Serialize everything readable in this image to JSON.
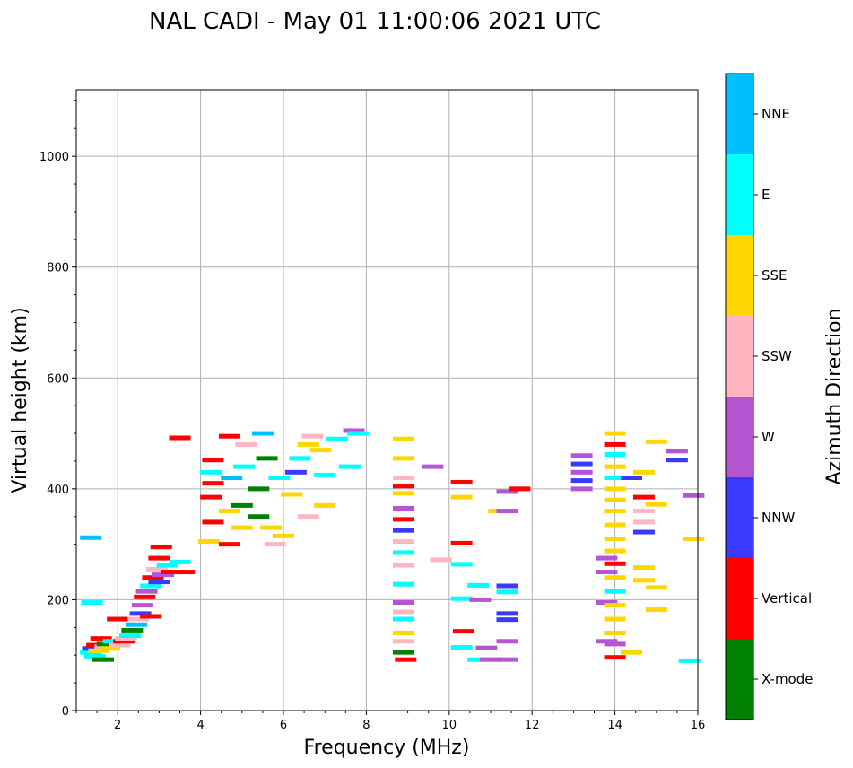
{
  "chart_data": {
    "type": "scatter",
    "title": "NAL CADI - May 01 11:00:06 2021 UTC",
    "xlabel": "Frequency (MHz)",
    "ylabel": "Virtual height (km)",
    "xlim": [
      1,
      16
    ],
    "ylim": [
      0,
      1120
    ],
    "xticks": [
      2,
      4,
      6,
      8,
      10,
      12,
      14,
      16
    ],
    "yticks": [
      0,
      200,
      400,
      600,
      800,
      1000
    ],
    "grid": true,
    "colorbar": {
      "label": "Azimuth Direction",
      "categories": [
        "X-mode",
        "Vertical",
        "NNW",
        "W",
        "SSW",
        "SSE",
        "E",
        "NNE"
      ],
      "colors": [
        "#008000",
        "#ff0000",
        "#3a3aff",
        "#b455d4",
        "#ffb6c1",
        "#ffd700",
        "#00ffff",
        "#00bfff"
      ]
    },
    "echoes": [
      {
        "f": 1.35,
        "h": 105,
        "c": "E"
      },
      {
        "f": 1.4,
        "h": 112,
        "c": "NNW"
      },
      {
        "f": 1.45,
        "h": 98,
        "c": "E"
      },
      {
        "f": 1.5,
        "h": 118,
        "c": "Vertical"
      },
      {
        "f": 1.55,
        "h": 108,
        "c": "SSE"
      },
      {
        "f": 1.6,
        "h": 130,
        "c": "Vertical"
      },
      {
        "f": 1.65,
        "h": 92,
        "c": "X-mode"
      },
      {
        "f": 1.7,
        "h": 115,
        "c": "SSW"
      },
      {
        "f": 1.75,
        "h": 120,
        "c": "X-mode"
      },
      {
        "f": 1.8,
        "h": 112,
        "c": "SSE"
      },
      {
        "f": 1.9,
        "h": 125,
        "c": "E"
      },
      {
        "f": 2.0,
        "h": 165,
        "c": "Vertical"
      },
      {
        "f": 2.05,
        "h": 118,
        "c": "SSW"
      },
      {
        "f": 2.15,
        "h": 125,
        "c": "Vertical"
      },
      {
        "f": 2.2,
        "h": 130,
        "c": "SSW"
      },
      {
        "f": 2.3,
        "h": 135,
        "c": "E"
      },
      {
        "f": 2.35,
        "h": 145,
        "c": "X-mode"
      },
      {
        "f": 2.45,
        "h": 155,
        "c": "NNE"
      },
      {
        "f": 2.5,
        "h": 165,
        "c": "SSW"
      },
      {
        "f": 2.55,
        "h": 175,
        "c": "NNW"
      },
      {
        "f": 2.6,
        "h": 190,
        "c": "W"
      },
      {
        "f": 2.65,
        "h": 205,
        "c": "Vertical"
      },
      {
        "f": 2.7,
        "h": 215,
        "c": "W"
      },
      {
        "f": 2.8,
        "h": 170,
        "c": "Vertical"
      },
      {
        "f": 2.8,
        "h": 225,
        "c": "E"
      },
      {
        "f": 2.85,
        "h": 240,
        "c": "Vertical"
      },
      {
        "f": 2.95,
        "h": 255,
        "c": "SSW"
      },
      {
        "f": 3.0,
        "h": 232,
        "c": "NNW"
      },
      {
        "f": 3.0,
        "h": 275,
        "c": "Vertical"
      },
      {
        "f": 3.05,
        "h": 295,
        "c": "Vertical"
      },
      {
        "f": 3.1,
        "h": 245,
        "c": "W"
      },
      {
        "f": 3.2,
        "h": 262,
        "c": "E"
      },
      {
        "f": 3.3,
        "h": 250,
        "c": "Vertical"
      },
      {
        "f": 3.5,
        "h": 268,
        "c": "E"
      },
      {
        "f": 3.6,
        "h": 250,
        "c": "Vertical"
      },
      {
        "f": 3.5,
        "h": 492,
        "c": "Vertical"
      },
      {
        "f": 1.35,
        "h": 312,
        "c": "NNE"
      },
      {
        "f": 1.38,
        "h": 195,
        "c": "E"
      },
      {
        "f": 4.2,
        "h": 305,
        "c": "SSE"
      },
      {
        "f": 4.3,
        "h": 340,
        "c": "Vertical"
      },
      {
        "f": 4.25,
        "h": 385,
        "c": "Vertical"
      },
      {
        "f": 4.3,
        "h": 410,
        "c": "Vertical"
      },
      {
        "f": 4.25,
        "h": 430,
        "c": "E"
      },
      {
        "f": 4.3,
        "h": 452,
        "c": "Vertical"
      },
      {
        "f": 4.7,
        "h": 300,
        "c": "Vertical"
      },
      {
        "f": 4.7,
        "h": 360,
        "c": "SSE"
      },
      {
        "f": 4.75,
        "h": 420,
        "c": "NNE"
      },
      {
        "f": 4.7,
        "h": 495,
        "c": "Vertical"
      },
      {
        "f": 5.0,
        "h": 330,
        "c": "SSE"
      },
      {
        "f": 5.0,
        "h": 370,
        "c": "X-mode"
      },
      {
        "f": 5.05,
        "h": 440,
        "c": "E"
      },
      {
        "f": 5.1,
        "h": 480,
        "c": "SSW"
      },
      {
        "f": 5.4,
        "h": 350,
        "c": "X-mode"
      },
      {
        "f": 5.4,
        "h": 400,
        "c": "X-mode"
      },
      {
        "f": 5.5,
        "h": 500,
        "c": "NNE"
      },
      {
        "f": 5.6,
        "h": 455,
        "c": "X-mode"
      },
      {
        "f": 5.7,
        "h": 330,
        "c": "SSE"
      },
      {
        "f": 5.8,
        "h": 300,
        "c": "SSW"
      },
      {
        "f": 5.9,
        "h": 420,
        "c": "E"
      },
      {
        "f": 6.0,
        "h": 315,
        "c": "SSE"
      },
      {
        "f": 6.2,
        "h": 390,
        "c": "SSE"
      },
      {
        "f": 6.3,
        "h": 430,
        "c": "NNW"
      },
      {
        "f": 6.4,
        "h": 455,
        "c": "E"
      },
      {
        "f": 6.6,
        "h": 350,
        "c": "SSW"
      },
      {
        "f": 6.6,
        "h": 480,
        "c": "SSE"
      },
      {
        "f": 6.7,
        "h": 495,
        "c": "SSW"
      },
      {
        "f": 6.9,
        "h": 470,
        "c": "SSE"
      },
      {
        "f": 7.0,
        "h": 370,
        "c": "SSE"
      },
      {
        "f": 7.0,
        "h": 425,
        "c": "E"
      },
      {
        "f": 7.3,
        "h": 490,
        "c": "E"
      },
      {
        "f": 7.6,
        "h": 440,
        "c": "E"
      },
      {
        "f": 7.7,
        "h": 505,
        "c": "W"
      },
      {
        "f": 7.8,
        "h": 500,
        "c": "E"
      },
      {
        "f": 8.9,
        "h": 490,
        "c": "SSE"
      },
      {
        "f": 8.9,
        "h": 455,
        "c": "SSE"
      },
      {
        "f": 8.9,
        "h": 420,
        "c": "SSW"
      },
      {
        "f": 8.9,
        "h": 405,
        "c": "Vertical"
      },
      {
        "f": 8.9,
        "h": 392,
        "c": "SSE"
      },
      {
        "f": 8.9,
        "h": 365,
        "c": "W"
      },
      {
        "f": 8.9,
        "h": 345,
        "c": "Vertical"
      },
      {
        "f": 8.9,
        "h": 325,
        "c": "NNW"
      },
      {
        "f": 8.9,
        "h": 305,
        "c": "SSW"
      },
      {
        "f": 8.9,
        "h": 285,
        "c": "E"
      },
      {
        "f": 8.9,
        "h": 262,
        "c": "SSW"
      },
      {
        "f": 8.9,
        "h": 228,
        "c": "E"
      },
      {
        "f": 8.9,
        "h": 195,
        "c": "W"
      },
      {
        "f": 8.9,
        "h": 178,
        "c": "SSW"
      },
      {
        "f": 8.9,
        "h": 165,
        "c": "E"
      },
      {
        "f": 8.9,
        "h": 140,
        "c": "SSE"
      },
      {
        "f": 8.9,
        "h": 125,
        "c": "SSW"
      },
      {
        "f": 8.9,
        "h": 105,
        "c": "X-mode"
      },
      {
        "f": 8.95,
        "h": 92,
        "c": "Vertical"
      },
      {
        "f": 9.6,
        "h": 440,
        "c": "W"
      },
      {
        "f": 9.8,
        "h": 272,
        "c": "SSW"
      },
      {
        "f": 10.3,
        "h": 412,
        "c": "Vertical"
      },
      {
        "f": 10.3,
        "h": 385,
        "c": "SSE"
      },
      {
        "f": 10.3,
        "h": 302,
        "c": "Vertical"
      },
      {
        "f": 10.3,
        "h": 264,
        "c": "E"
      },
      {
        "f": 10.3,
        "h": 202,
        "c": "E"
      },
      {
        "f": 10.35,
        "h": 143,
        "c": "Vertical"
      },
      {
        "f": 10.3,
        "h": 114,
        "c": "E"
      },
      {
        "f": 10.7,
        "h": 226,
        "c": "E"
      },
      {
        "f": 10.75,
        "h": 200,
        "c": "W"
      },
      {
        "f": 10.7,
        "h": 92,
        "c": "E"
      },
      {
        "f": 10.9,
        "h": 113,
        "c": "W"
      },
      {
        "f": 11.0,
        "h": 92,
        "c": "W"
      },
      {
        "f": 11.2,
        "h": 360,
        "c": "SSE"
      },
      {
        "f": 11.4,
        "h": 395,
        "c": "W"
      },
      {
        "f": 11.4,
        "h": 360,
        "c": "W"
      },
      {
        "f": 11.4,
        "h": 225,
        "c": "NNW"
      },
      {
        "f": 11.4,
        "h": 214,
        "c": "E"
      },
      {
        "f": 11.4,
        "h": 175,
        "c": "NNW"
      },
      {
        "f": 11.4,
        "h": 164,
        "c": "NNW"
      },
      {
        "f": 11.4,
        "h": 125,
        "c": "W"
      },
      {
        "f": 11.4,
        "h": 92,
        "c": "W"
      },
      {
        "f": 11.7,
        "h": 400,
        "c": "Vertical"
      },
      {
        "f": 13.2,
        "h": 460,
        "c": "W"
      },
      {
        "f": 13.2,
        "h": 445,
        "c": "NNW"
      },
      {
        "f": 13.2,
        "h": 430,
        "c": "W"
      },
      {
        "f": 13.2,
        "h": 415,
        "c": "NNW"
      },
      {
        "f": 13.2,
        "h": 400,
        "c": "W"
      },
      {
        "f": 13.8,
        "h": 275,
        "c": "W"
      },
      {
        "f": 13.8,
        "h": 250,
        "c": "W"
      },
      {
        "f": 13.8,
        "h": 195,
        "c": "W"
      },
      {
        "f": 13.8,
        "h": 125,
        "c": "W"
      },
      {
        "f": 14.0,
        "h": 500,
        "c": "SSE"
      },
      {
        "f": 14.0,
        "h": 480,
        "c": "Vertical"
      },
      {
        "f": 14.0,
        "h": 462,
        "c": "E"
      },
      {
        "f": 14.0,
        "h": 440,
        "c": "SSE"
      },
      {
        "f": 14.0,
        "h": 420,
        "c": "E"
      },
      {
        "f": 14.0,
        "h": 400,
        "c": "SSE"
      },
      {
        "f": 14.0,
        "h": 380,
        "c": "SSE"
      },
      {
        "f": 14.0,
        "h": 360,
        "c": "SSE"
      },
      {
        "f": 14.0,
        "h": 335,
        "c": "SSE"
      },
      {
        "f": 14.0,
        "h": 310,
        "c": "SSE"
      },
      {
        "f": 14.0,
        "h": 288,
        "c": "SSE"
      },
      {
        "f": 14.0,
        "h": 265,
        "c": "Vertical"
      },
      {
        "f": 14.0,
        "h": 240,
        "c": "SSE"
      },
      {
        "f": 14.0,
        "h": 215,
        "c": "E"
      },
      {
        "f": 14.0,
        "h": 190,
        "c": "SSE"
      },
      {
        "f": 14.0,
        "h": 165,
        "c": "SSE"
      },
      {
        "f": 14.0,
        "h": 140,
        "c": "SSE"
      },
      {
        "f": 14.0,
        "h": 120,
        "c": "W"
      },
      {
        "f": 14.0,
        "h": 96,
        "c": "Vertical"
      },
      {
        "f": 14.4,
        "h": 105,
        "c": "SSE"
      },
      {
        "f": 14.4,
        "h": 420,
        "c": "NNW"
      },
      {
        "f": 14.7,
        "h": 430,
        "c": "SSE"
      },
      {
        "f": 14.7,
        "h": 385,
        "c": "Vertical"
      },
      {
        "f": 14.7,
        "h": 360,
        "c": "SSW"
      },
      {
        "f": 14.7,
        "h": 340,
        "c": "SSW"
      },
      {
        "f": 14.7,
        "h": 322,
        "c": "NNW"
      },
      {
        "f": 14.7,
        "h": 258,
        "c": "SSE"
      },
      {
        "f": 14.7,
        "h": 235,
        "c": "SSE"
      },
      {
        "f": 15.0,
        "h": 485,
        "c": "SSE"
      },
      {
        "f": 15.0,
        "h": 372,
        "c": "SSE"
      },
      {
        "f": 15.0,
        "h": 222,
        "c": "SSE"
      },
      {
        "f": 15.0,
        "h": 182,
        "c": "SSE"
      },
      {
        "f": 15.5,
        "h": 468,
        "c": "W"
      },
      {
        "f": 15.5,
        "h": 452,
        "c": "NNW"
      },
      {
        "f": 15.9,
        "h": 388,
        "c": "W"
      },
      {
        "f": 15.9,
        "h": 310,
        "c": "SSE"
      },
      {
        "f": 15.8,
        "h": 90,
        "c": "E"
      }
    ]
  }
}
